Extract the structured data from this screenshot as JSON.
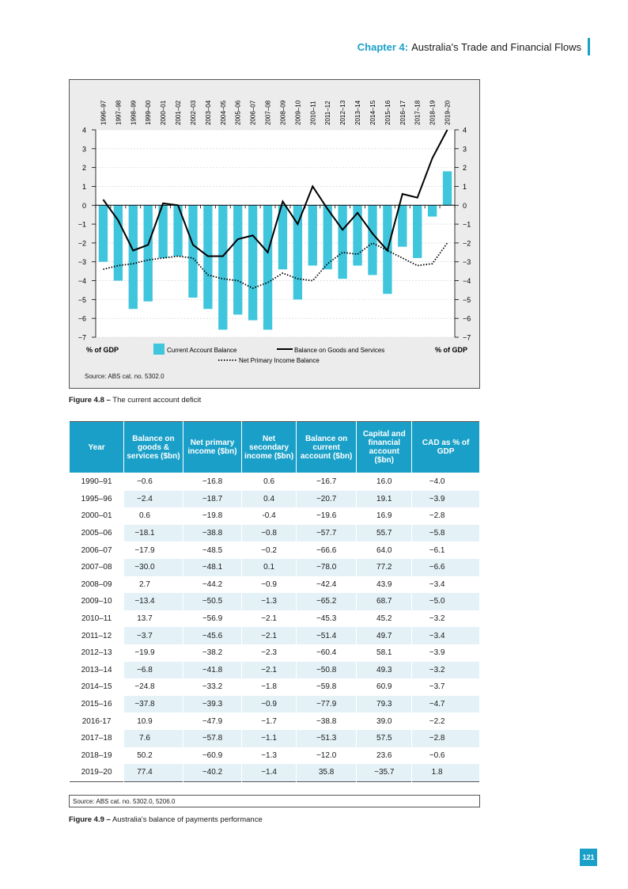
{
  "header": {
    "chapter_label": "Chapter 4:",
    "chapter_title": "Australia's Trade and Financial Flows"
  },
  "figure_48": {
    "caption_num": "Figure 4.8 –",
    "caption_text": "The current account deficit",
    "source": "Source: ABS cat. no. 5302.0",
    "left_axis_label": "% of GDP",
    "right_axis_label": "% of GDP",
    "legend": {
      "bar": "Current Account Balance",
      "line": "Balance on Goods and Services",
      "dotted": "Net Primary Income Balance"
    }
  },
  "chart_data": {
    "type": "bar",
    "categories": [
      "1996–97",
      "1997–98",
      "1998–99",
      "1999–00",
      "2000–01",
      "2001–02",
      "2002–03",
      "2003–04",
      "2004–05",
      "2005–06",
      "2006–07",
      "2007–08",
      "2008–09",
      "2009–10",
      "2010–11",
      "2011–12",
      "2012–13",
      "2013–14",
      "2014–15",
      "2015–16",
      "2016–17",
      "2017–18",
      "2018–19",
      "2019–20"
    ],
    "yticks": [
      "4",
      "3",
      "2",
      "1",
      "0",
      "−1",
      "−2",
      "−3",
      "−4",
      "−5",
      "−6",
      "−7"
    ],
    "ylim": [
      -7,
      4
    ],
    "grid": true,
    "legend_position": "bottom",
    "colors": {
      "bar": "#3fc6dd",
      "line": "#000000",
      "dotted": "#000000",
      "background": "#ececec"
    },
    "series": [
      {
        "name": "Current Account Balance",
        "type": "bar",
        "values": [
          -3.0,
          -4.0,
          -5.5,
          -5.1,
          -2.8,
          -2.7,
          -4.9,
          -5.5,
          -6.6,
          -5.8,
          -6.1,
          -6.6,
          -3.4,
          -5.0,
          -3.2,
          -3.4,
          -3.9,
          -3.2,
          -3.7,
          -4.7,
          -2.2,
          -2.8,
          -0.6,
          1.8
        ]
      },
      {
        "name": "Balance on Goods and Services",
        "type": "line",
        "values": [
          0.3,
          -0.8,
          -2.4,
          -2.1,
          0.1,
          0.0,
          -2.1,
          -2.7,
          -2.7,
          -1.8,
          -1.6,
          -2.5,
          0.2,
          -1.0,
          1.0,
          -0.2,
          -1.3,
          -0.4,
          -1.5,
          -2.4,
          0.6,
          0.4,
          2.5,
          4.0
        ]
      },
      {
        "name": "Net Primary Income Balance",
        "type": "dotted",
        "values": [
          -3.4,
          -3.2,
          -3.1,
          -2.9,
          -2.8,
          -2.7,
          -2.8,
          -3.7,
          -3.9,
          -4.0,
          -4.4,
          -4.1,
          -3.6,
          -3.9,
          -4.0,
          -3.1,
          -2.5,
          -2.6,
          -2.0,
          -2.4,
          -2.8,
          -3.2,
          -3.1,
          -2.0
        ]
      }
    ]
  },
  "figure_49": {
    "caption_num": "Figure 4.9 –",
    "caption_text": "Australia's balance of payments performance",
    "source": "Source: ABS cat. no. 5302.0, 5206.0",
    "headers": [
      "Year",
      "Balance on goods & services ($bn)",
      "Net primary income ($bn)",
      "Net secondary income ($bn)",
      "Balance on current account ($bn)",
      "Capital and financial account ($bn)",
      "CAD as % of GDP"
    ],
    "rows": [
      [
        "1990–91",
        "−0.6",
        "−16.8",
        "0.6",
        "−16.7",
        "16.0",
        "−4.0"
      ],
      [
        "1995–96",
        "−2.4",
        "−18.7",
        "0.4",
        "−20.7",
        "19.1",
        "−3.9"
      ],
      [
        "2000–01",
        "0.6",
        "−19.8",
        "-0.4",
        "−19.6",
        "16.9",
        "−2.8"
      ],
      [
        "2005–06",
        "−18.1",
        "−38.8",
        "−0.8",
        "−57.7",
        "55.7",
        "−5.8"
      ],
      [
        "2006–07",
        "−17.9",
        "−48.5",
        "−0.2",
        "−66.6",
        "64.0",
        "−6.1"
      ],
      [
        "2007–08",
        "−30.0",
        "−48.1",
        "0.1",
        "−78.0",
        "77.2",
        "−6.6"
      ],
      [
        "2008–09",
        "2.7",
        "−44.2",
        "−0.9",
        "−42.4",
        "43.9",
        "−3.4"
      ],
      [
        "2009–10",
        "−13.4",
        "−50.5",
        "−1.3",
        "−65.2",
        "68.7",
        "−5.0"
      ],
      [
        "2010–11",
        "13.7",
        "−56.9",
        "−2.1",
        "−45.3",
        "45.2",
        "−3.2"
      ],
      [
        "2011–12",
        "−3.7",
        "−45.6",
        "−2.1",
        "−51.4",
        "49.7",
        "−3.4"
      ],
      [
        "2012–13",
        "−19.9",
        "−38.2",
        "−2.3",
        "−60.4",
        "58.1",
        "−3.9"
      ],
      [
        "2013–14",
        "−6.8",
        "−41.8",
        "−2.1",
        "−50.8",
        "49.3",
        "−3.2"
      ],
      [
        "2014–15",
        "−24.8",
        "−33.2",
        "−1.8",
        "−59.8",
        "60.9",
        "−3.7"
      ],
      [
        "2015–16",
        "−37.8",
        "−39.3",
        "−0.9",
        "−77.9",
        "79.3",
        "−4.7"
      ],
      [
        "2016-17",
        "10.9",
        "−47.9",
        "−1.7",
        "−38.8",
        "39.0",
        "−2.2"
      ],
      [
        "2017–18",
        "7.6",
        "−57.8",
        "−1.1",
        "−51.3",
        "57.5",
        "−2.8"
      ],
      [
        "2018–19",
        "50.2",
        "−60.9",
        "−1.3",
        "−12.0",
        "23.6",
        "−0.6"
      ],
      [
        "2019–20",
        "77.4",
        "−40.2",
        "−1.4",
        "35.8",
        "−35.7",
        "1.8"
      ]
    ]
  },
  "page_number": "121"
}
